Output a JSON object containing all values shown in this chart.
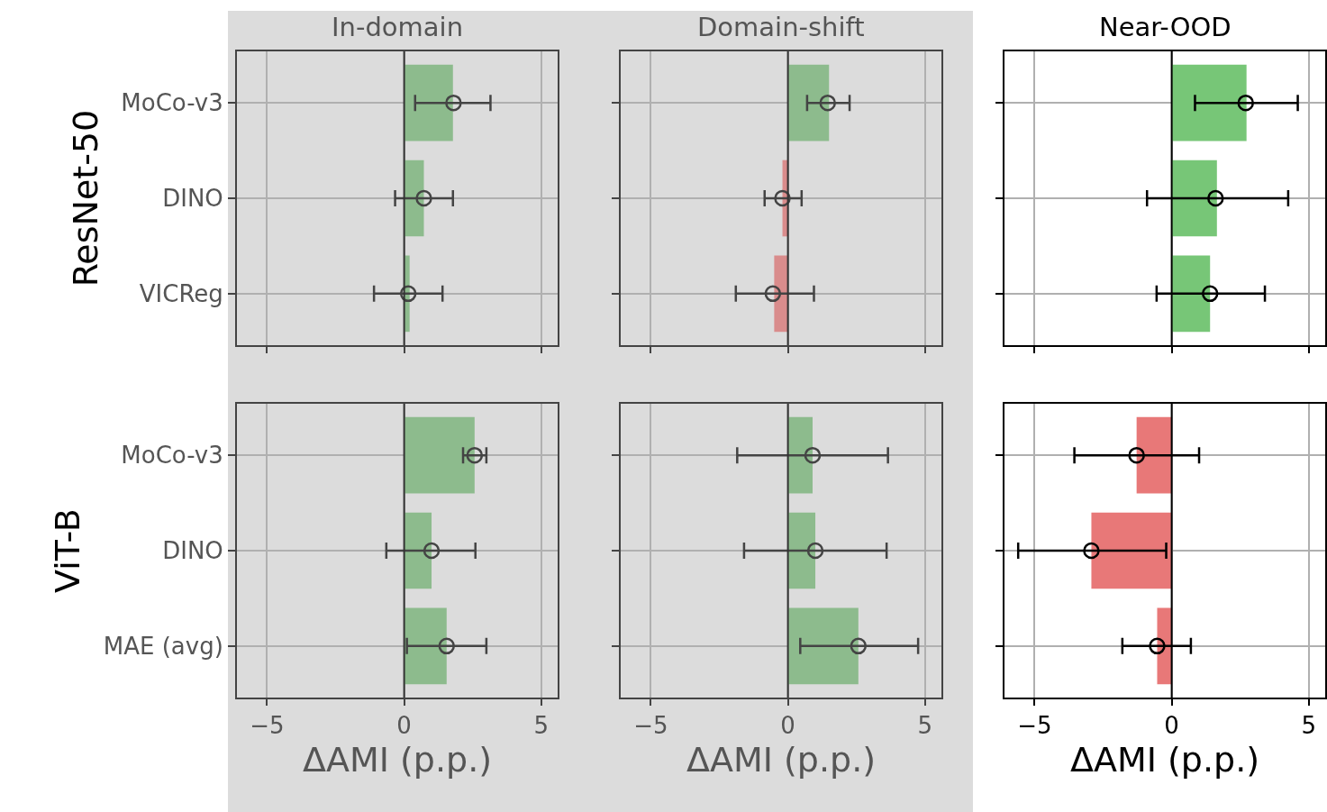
{
  "chart_data": [
    {
      "type": "bar",
      "orientation": "horizontal",
      "title": "In-domain",
      "ylabel": "ResNet-50",
      "categories": [
        "MoCo-v3",
        "DINO",
        "VICReg"
      ],
      "series": [
        {
          "type": "bar",
          "colors": [
            "#8dbb8d",
            "#8dbb8d",
            "#8dbb8d"
          ],
          "values": [
            1.78,
            0.72,
            0.2
          ]
        },
        {
          "type": "scatter",
          "color": "#444444",
          "values": [
            1.8,
            0.72,
            0.15
          ],
          "errors": [
            [
              0.4,
              3.15
            ],
            [
              -0.33,
              1.78
            ],
            [
              -1.1,
              1.4
            ]
          ]
        }
      ],
      "xlim": [
        -6.1,
        5.6
      ],
      "xticks": [
        {
          "value": -5,
          "label": null
        },
        {
          "value": 0,
          "label": null
        },
        {
          "value": 5,
          "label": null
        }
      ],
      "grid": true,
      "marker": "circle",
      "ref_lines": [
        {
          "axis": "x",
          "value": 0,
          "color": "#333333"
        }
      ],
      "tick_labels": "y",
      "legend": false
    },
    {
      "type": "bar",
      "orientation": "horizontal",
      "title": "Domain-shift",
      "categories": [
        null,
        null,
        null
      ],
      "series": [
        {
          "type": "bar",
          "colors": [
            "#8dbb8d",
            "#d98c8c",
            "#d98c8c"
          ],
          "values": [
            1.5,
            -0.2,
            -0.5
          ]
        },
        {
          "type": "scatter",
          "color": "#444444",
          "values": [
            1.45,
            -0.2,
            -0.55
          ],
          "errors": [
            [
              0.7,
              2.25
            ],
            [
              -0.85,
              0.5
            ],
            [
              -1.9,
              0.95
            ]
          ]
        }
      ],
      "xlim": [
        -6.1,
        5.6
      ],
      "xticks": [
        {
          "value": -5,
          "label": null
        },
        {
          "value": 0,
          "label": null
        },
        {
          "value": 5,
          "label": null
        }
      ],
      "grid": true,
      "marker": "circle",
      "ref_lines": [
        {
          "axis": "x",
          "value": 0,
          "color": "#333333"
        }
      ],
      "tick_labels": false,
      "legend": false
    },
    {
      "type": "bar",
      "orientation": "horizontal",
      "title": "Near-OOD",
      "categories": [
        null,
        null,
        null
      ],
      "series": [
        {
          "type": "bar",
          "colors": [
            "#77c677",
            "#77c677",
            "#77c677"
          ],
          "values": [
            2.73,
            1.65,
            1.4
          ]
        },
        {
          "type": "scatter",
          "color": "#000000",
          "values": [
            2.7,
            1.6,
            1.4
          ],
          "errors": [
            [
              0.85,
              4.6
            ],
            [
              -0.9,
              4.25
            ],
            [
              -0.55,
              3.4
            ]
          ]
        }
      ],
      "xlim": [
        -6.1,
        5.6
      ],
      "xticks": [
        {
          "value": -5,
          "label": null
        },
        {
          "value": 0,
          "label": null
        },
        {
          "value": 5,
          "label": null
        }
      ],
      "grid": true,
      "marker": "circle",
      "ref_lines": [
        {
          "axis": "x",
          "value": 0,
          "color": "#000000"
        }
      ],
      "tick_labels": false,
      "legend": false
    },
    {
      "type": "bar",
      "orientation": "horizontal",
      "ylabel": "ViT-B",
      "xlabel": "ΔAMI (p.p.)",
      "categories": [
        "MoCo-v3",
        "DINO",
        "MAE (avg)"
      ],
      "series": [
        {
          "type": "bar",
          "colors": [
            "#8dbb8d",
            "#8dbb8d",
            "#8dbb8d"
          ],
          "values": [
            2.57,
            1.0,
            1.55
          ]
        },
        {
          "type": "scatter",
          "color": "#444444",
          "values": [
            2.57,
            1.0,
            1.55
          ],
          "errors": [
            [
              2.15,
              3.0
            ],
            [
              -0.65,
              2.6
            ],
            [
              0.1,
              3.0
            ]
          ]
        }
      ],
      "xlim": [
        -6.1,
        5.6
      ],
      "xticks": [
        {
          "value": -5,
          "label": "−5"
        },
        {
          "value": 0,
          "label": "0"
        },
        {
          "value": 5,
          "label": "5"
        }
      ],
      "grid": true,
      "marker": "circle",
      "ref_lines": [
        {
          "axis": "x",
          "value": 0,
          "color": "#333333"
        }
      ],
      "legend": false
    },
    {
      "type": "bar",
      "orientation": "horizontal",
      "xlabel": "ΔAMI (p.p.)",
      "categories": [
        null,
        null,
        null
      ],
      "series": [
        {
          "type": "bar",
          "colors": [
            "#8dbb8d",
            "#8dbb8d",
            "#8dbb8d"
          ],
          "values": [
            0.9,
            1.0,
            2.57
          ]
        },
        {
          "type": "scatter",
          "color": "#444444",
          "values": [
            0.9,
            1.0,
            2.57
          ],
          "errors": [
            [
              -1.85,
              3.65
            ],
            [
              -1.6,
              3.6
            ],
            [
              0.45,
              4.75
            ]
          ]
        }
      ],
      "xlim": [
        -6.1,
        5.6
      ],
      "xticks": [
        {
          "value": -5,
          "label": "−5"
        },
        {
          "value": 0,
          "label": "0"
        },
        {
          "value": 5,
          "label": "5"
        }
      ],
      "grid": true,
      "marker": "circle",
      "ref_lines": [
        {
          "axis": "x",
          "value": 0,
          "color": "#333333"
        }
      ],
      "tick_labels": "x",
      "legend": false
    },
    {
      "type": "bar",
      "orientation": "horizontal",
      "xlabel": "ΔAMI (p.p.)",
      "categories": [
        null,
        null,
        null
      ],
      "series": [
        {
          "type": "bar",
          "colors": [
            "#e87878",
            "#e87878",
            "#e87878"
          ],
          "values": [
            -1.28,
            -2.93,
            -0.53
          ]
        },
        {
          "type": "scatter",
          "color": "#000000",
          "values": [
            -1.28,
            -2.93,
            -0.53
          ],
          "errors": [
            [
              -3.55,
              1.0
            ],
            [
              -5.6,
              -0.2
            ],
            [
              -1.8,
              0.7
            ]
          ]
        }
      ],
      "xlim": [
        -6.1,
        5.6
      ],
      "xticks": [
        {
          "value": -5,
          "label": "−5"
        },
        {
          "value": 0,
          "label": "0"
        },
        {
          "value": 5,
          "label": "5"
        }
      ],
      "grid": true,
      "marker": "circle",
      "ref_lines": [
        {
          "axis": "x",
          "value": 0,
          "color": "#000000"
        }
      ],
      "tick_labels": "x",
      "legend": false
    }
  ]
}
